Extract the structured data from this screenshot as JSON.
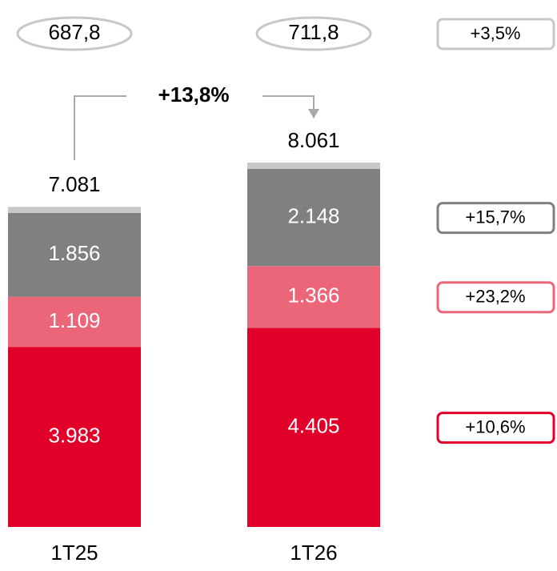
{
  "chart_data": {
    "type": "bar",
    "stacked": true,
    "categories": [
      "1T25",
      "1T26"
    ],
    "series": [
      {
        "color": "#e0002a",
        "values": [
          3983,
          4405
        ],
        "value_labels": [
          "3.983",
          "4.405"
        ],
        "growth": 10.6,
        "growth_label": "+10,6%"
      },
      {
        "color": "#eb6679",
        "values": [
          1109,
          1366
        ],
        "value_labels": [
          "1.109",
          "1.366"
        ],
        "growth": 23.2,
        "growth_label": "+23,2%"
      },
      {
        "color": "#808080",
        "values": [
          1856,
          2148
        ],
        "value_labels": [
          "1.856",
          "2.148"
        ],
        "growth": 15.7,
        "growth_label": "+15,7%"
      },
      {
        "color": "#c8c8c8",
        "values": [
          133,
          142
        ]
      }
    ],
    "totals": {
      "values": [
        7081,
        8061
      ],
      "value_labels": [
        "7.081",
        "8.061"
      ]
    },
    "top_values": {
      "values": [
        687.8,
        711.8
      ],
      "value_labels": [
        "687,8",
        "711,8"
      ],
      "growth": 3.5,
      "growth_label": "+3,5%"
    },
    "total_growth": {
      "value": 13.8,
      "label": "+13,8%"
    }
  }
}
